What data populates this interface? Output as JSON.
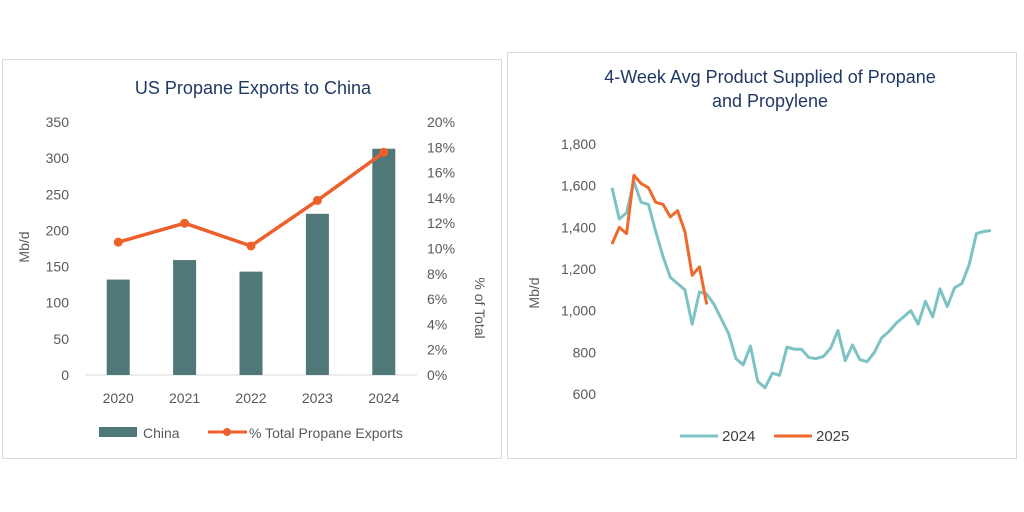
{
  "chart_data": [
    {
      "type": "bar+line",
      "title": "US Propane Exports to China",
      "categories": [
        "2020",
        "2021",
        "2022",
        "2023",
        "2024"
      ],
      "series": [
        {
          "name": "China",
          "type": "bar",
          "axis": "left",
          "values": [
            132,
            159,
            143,
            223,
            313
          ],
          "color": "#507878"
        },
        {
          "name": "% Total Propane Exports",
          "type": "line",
          "axis": "right",
          "values": [
            10.5,
            12.0,
            10.2,
            13.8,
            17.6
          ],
          "color": "#ed5f2b"
        }
      ],
      "ylabel": "Mb/d",
      "y2label": "% of Total",
      "ylim": [
        0,
        350
      ],
      "yticks": [
        "0",
        "50",
        "100",
        "150",
        "200",
        "250",
        "300",
        "350"
      ],
      "y2lim": [
        0,
        20
      ],
      "y2ticks": [
        "0%",
        "2%",
        "4%",
        "6%",
        "8%",
        "10%",
        "12%",
        "14%",
        "16%",
        "18%",
        "20%"
      ],
      "grid": false,
      "legend": "bottom"
    },
    {
      "type": "line",
      "title_lines": [
        "4-Week Avg Product Supplied of Propane",
        "and Propylene"
      ],
      "ylabel": "Mb/d",
      "ylim": [
        600,
        1800
      ],
      "yticks": [
        "600",
        "800",
        "1,000",
        "1,200",
        "1,400",
        "1,600",
        "1,800"
      ],
      "grid": false,
      "legend": "bottom",
      "series": [
        {
          "name": "2024",
          "color": "#7ec3c3",
          "values": [
            1590,
            1440,
            1470,
            1620,
            1520,
            1510,
            1380,
            1260,
            1160,
            1130,
            1100,
            935,
            1090,
            1080,
            1030,
            960,
            890,
            770,
            740,
            830,
            660,
            630,
            700,
            690,
            825,
            815,
            815,
            775,
            770,
            780,
            820,
            905,
            760,
            835,
            765,
            755,
            800,
            870,
            900,
            940,
            970,
            1000,
            935,
            1045,
            970,
            1105,
            1020,
            1110,
            1130,
            1220,
            1370,
            1380,
            1385
          ]
        },
        {
          "name": "2025",
          "color": "#ed6a2c",
          "values": [
            1320,
            1400,
            1370,
            1650,
            1610,
            1590,
            1520,
            1510,
            1450,
            1480,
            1380,
            1170,
            1210,
            1030
          ]
        }
      ]
    }
  ]
}
